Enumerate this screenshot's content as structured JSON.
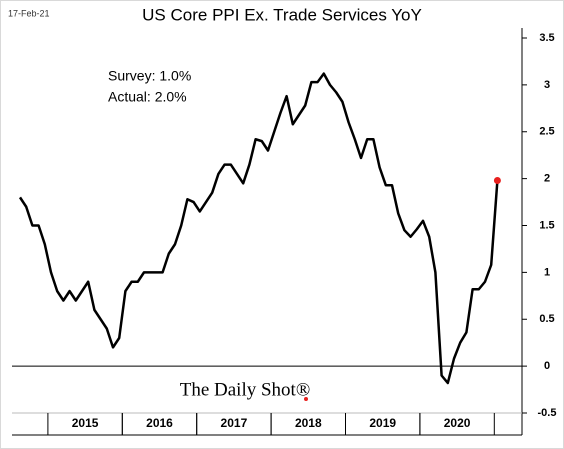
{
  "chart_data": {
    "type": "line",
    "title": "US Core PPI Ex. Trade Services YoY",
    "date_stamp": "17-Feb-21",
    "annotations": [
      "Survey: 1.0%",
      "Actual:  2.0%"
    ],
    "source": "The Daily Shot®",
    "categories": [
      null,
      null,
      null,
      null,
      null,
      null,
      null,
      null,
      null,
      null,
      null,
      "2015",
      null,
      null,
      null,
      null,
      null,
      null,
      null,
      null,
      null,
      null,
      null,
      "2016",
      null,
      null,
      null,
      null,
      null,
      null,
      null,
      null,
      null,
      null,
      null,
      "2017",
      null,
      null,
      null,
      null,
      null,
      null,
      null,
      null,
      null,
      null,
      null,
      "2018",
      null,
      null,
      null,
      null,
      null,
      null,
      null,
      null,
      null,
      null,
      null,
      "2019",
      null,
      null,
      null,
      null,
      null,
      null,
      null,
      null,
      null,
      null,
      null,
      "2020",
      null,
      null,
      null,
      null,
      null,
      null
    ],
    "series": [
      {
        "name": "US Core PPI Ex. Trade Services YoY",
        "color": "#000000",
        "last_point_color": "#e8201e",
        "values": [
          1.8,
          1.7,
          1.5,
          1.5,
          1.3,
          1.0,
          0.8,
          0.7,
          0.8,
          0.7,
          0.8,
          0.9,
          0.6,
          0.5,
          0.4,
          0.2,
          0.3,
          0.8,
          0.9,
          0.9,
          1.0,
          1.0,
          1.0,
          1.0,
          1.2,
          1.3,
          1.5,
          1.78,
          1.75,
          1.65,
          1.75,
          1.85,
          2.05,
          2.15,
          2.15,
          2.05,
          1.95,
          2.15,
          2.42,
          2.4,
          2.3,
          2.5,
          2.7,
          2.88,
          2.58,
          2.68,
          2.78,
          3.03,
          3.03,
          3.12,
          3.0,
          2.92,
          2.82,
          2.6,
          2.42,
          2.22,
          2.42,
          2.42,
          2.12,
          1.93,
          1.93,
          1.63,
          1.45,
          1.38,
          1.46,
          1.55,
          1.38,
          1.0,
          -0.1,
          -0.18,
          0.08,
          0.25,
          0.36,
          0.82,
          0.82,
          0.9,
          1.08,
          1.98
        ]
      }
    ],
    "ylim": [
      -0.5,
      3.5
    ],
    "yticks": [
      3.5,
      3.0,
      2.5,
      2.0,
      1.5,
      1.0,
      0.5,
      0.0,
      -0.5
    ]
  }
}
